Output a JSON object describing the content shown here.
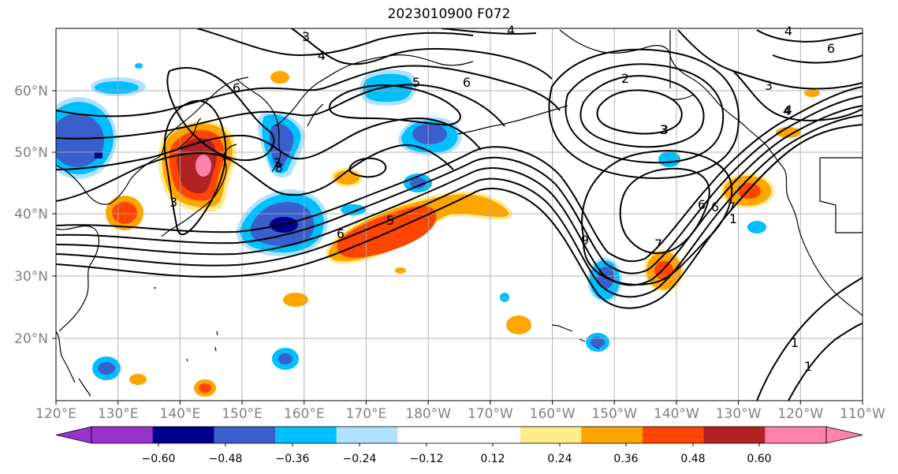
{
  "title": "2023010900 F072",
  "map": {
    "lon_ticks": [
      "120°E",
      "130°E",
      "140°E",
      "150°E",
      "160°E",
      "170°E",
      "180°W",
      "170°W",
      "160°W",
      "150°W",
      "140°W",
      "130°W",
      "120°W",
      "110°W"
    ],
    "lat_ticks": [
      "60°N",
      "50°N",
      "40°N",
      "30°N",
      "20°N"
    ],
    "contour_labels": [
      "3",
      "4",
      "6",
      "5",
      "6",
      "2",
      "3",
      "4",
      "3",
      "8",
      "6",
      "6",
      "4",
      "5",
      "6",
      "9",
      "7",
      "6",
      "7",
      "1",
      "1",
      "1",
      "3",
      "4",
      "3",
      "3",
      "4"
    ]
  },
  "colorbar": {
    "colors": [
      "#9932cc",
      "#00008b",
      "#3a5fcd",
      "#00bfff",
      "#b0e2ff",
      "#ffffff",
      "#ffffff",
      "#ffec8b",
      "#ffa500",
      "#ff4500",
      "#b22222",
      "#ff82ab"
    ],
    "labels": [
      "−0.60",
      "−0.48",
      "−0.36",
      "−0.24",
      "−0.12",
      "0.12",
      "0.24",
      "0.36",
      "0.48",
      "0.60"
    ]
  }
}
